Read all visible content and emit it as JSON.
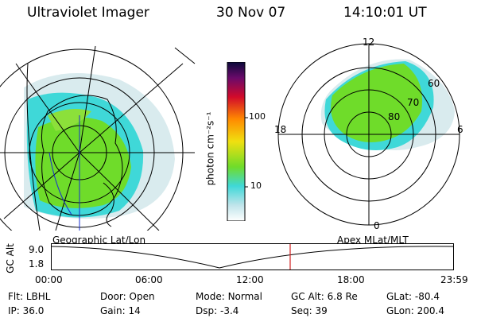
{
  "header": {
    "title": "Ultraviolet Imager",
    "date": "30 Nov 07",
    "time": "14:10:01 UT"
  },
  "colorbar": {
    "unit": "photon cm⁻²s⁻¹",
    "ticks": [
      "100",
      "10"
    ]
  },
  "map_labels": {
    "left": "Geographic Lat/Lon",
    "right": "Apex MLat/MLT"
  },
  "polar_plot": {
    "mlt_labels": {
      "top": "12",
      "left": "18",
      "right": "6",
      "bottom": "0"
    },
    "lat_labels": [
      "60",
      "70",
      "80"
    ]
  },
  "timeline": {
    "axis_label": "GC Alt",
    "y_max": "9.0",
    "y_min": "1.8",
    "x_ticks": [
      "00:00",
      "06:00",
      "12:00",
      "18:00",
      "23:59"
    ],
    "current_time_marker": "14:10:01",
    "marker_color": "#d22020"
  },
  "status": {
    "row1": [
      {
        "key": "Flt:",
        "value": "LBHL"
      },
      {
        "key": "Door:",
        "value": "Open"
      },
      {
        "key": "Mode:",
        "value": "Normal"
      },
      {
        "key": "GC Alt:",
        "value": "6.8 Re"
      },
      {
        "key": "GLat:",
        "value": "-80.4"
      }
    ],
    "row2": [
      {
        "key": "IP:",
        "value": "36.0"
      },
      {
        "key": "Gain:",
        "value": "14"
      },
      {
        "key": "Dsp:",
        "value": "-3.4"
      },
      {
        "key": "Seq:",
        "value": "39"
      },
      {
        "key": "GLon:",
        "value": "200.4"
      }
    ]
  },
  "colors": {
    "aurora_green": "#6fdc2a",
    "aurora_cyan": "#3fd8d8",
    "aurora_light": "#cfe8ec"
  }
}
